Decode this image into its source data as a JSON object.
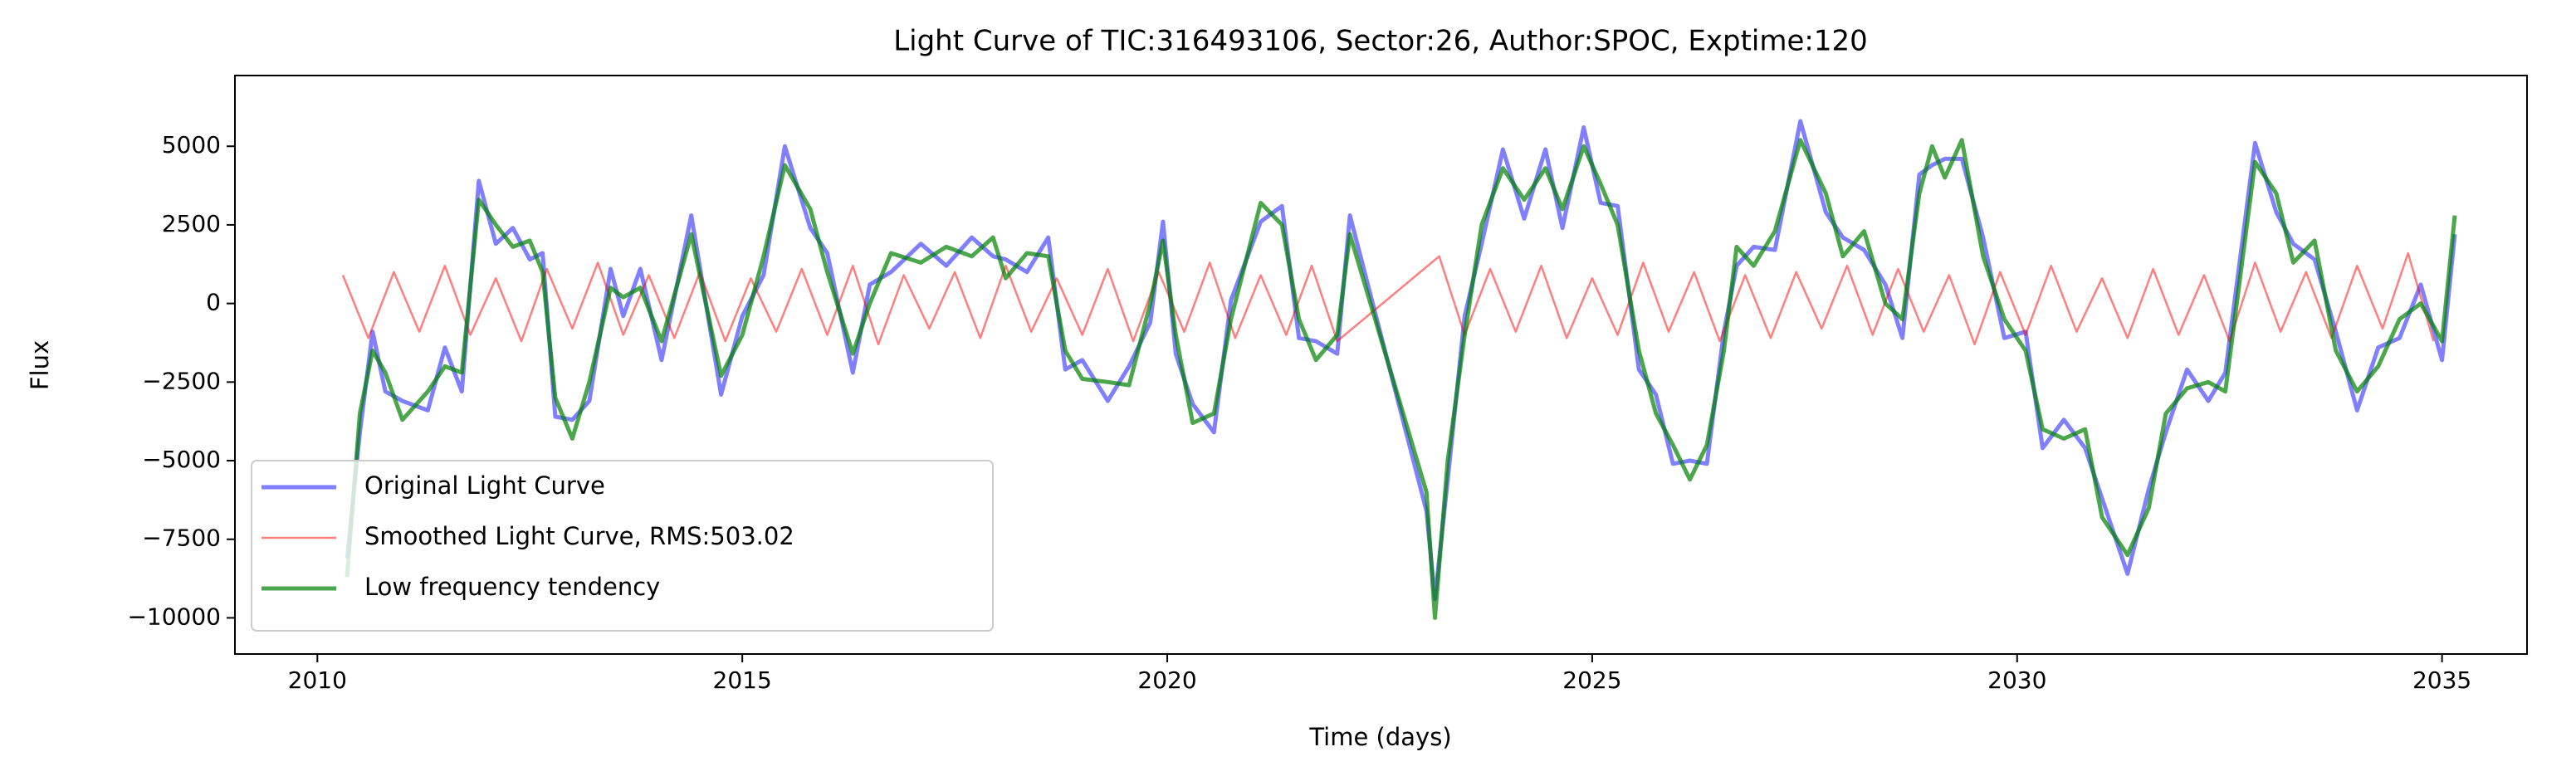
{
  "chart_data": {
    "type": "line",
    "title": "Light Curve of TIC:316493106, Sector:26, Author:SPOC, Exptime:120",
    "x_label": "Time (days)",
    "y_label": "Flux",
    "xlim": [
      2009.03,
      2036.0
    ],
    "ylim": [
      -11150,
      7250
    ],
    "xticks": [
      2010,
      2015,
      2020,
      2025,
      2030,
      2035
    ],
    "yticks": [
      {
        "value": -10000,
        "label": "−10000"
      },
      {
        "value": -7500,
        "label": "−7500"
      },
      {
        "value": -5000,
        "label": "−5000"
      },
      {
        "value": -2500,
        "label": "−2500"
      },
      0,
      2500,
      5000
    ],
    "legend": "lower left",
    "series": [
      {
        "name": "Original Light Curve",
        "color": "#0000ff",
        "alpha": 0.5,
        "x": [
          2010.35,
          2010.5,
          2010.65,
          2010.8,
          2011.0,
          2011.3,
          2011.5,
          2011.7,
          2011.9,
          2012.1,
          2012.3,
          2012.5,
          2012.65,
          2012.8,
          2013.0,
          2013.2,
          2013.45,
          2013.6,
          2013.8,
          2014.05,
          2014.4,
          2014.75,
          2015.0,
          2015.25,
          2015.5,
          2015.8,
          2016.0,
          2016.3,
          2016.5,
          2016.75,
          2017.1,
          2017.4,
          2017.7,
          2017.95,
          2018.1,
          2018.35,
          2018.6,
          2018.8,
          2019.0,
          2019.3,
          2019.55,
          2019.8,
          2019.95,
          2020.1,
          2020.3,
          2020.55,
          2020.75,
          2021.1,
          2021.35,
          2021.55,
          2021.75,
          2022.0,
          2022.15,
          2023.05,
          2023.15,
          2023.3,
          2023.5,
          2023.7,
          2023.95,
          2024.2,
          2024.45,
          2024.65,
          2024.9,
          2025.1,
          2025.3,
          2025.55,
          2025.75,
          2025.95,
          2026.15,
          2026.35,
          2026.55,
          2026.7,
          2026.9,
          2027.15,
          2027.45,
          2027.75,
          2027.95,
          2028.2,
          2028.45,
          2028.65,
          2028.85,
          2029.0,
          2029.15,
          2029.35,
          2029.6,
          2029.85,
          2030.1,
          2030.3,
          2030.55,
          2030.8,
          2031.0,
          2031.3,
          2031.55,
          2031.75,
          2032.0,
          2032.25,
          2032.45,
          2032.8,
          2033.05,
          2033.25,
          2033.5,
          2033.75,
          2034.0,
          2034.25,
          2034.5,
          2034.75,
          2035.0,
          2035.15
        ],
        "values": [
          -8100,
          -4100,
          -900,
          -2800,
          -3100,
          -3400,
          -1400,
          -2800,
          3900,
          1900,
          2400,
          1400,
          1600,
          -3600,
          -3700,
          -3100,
          1100,
          -400,
          1100,
          -1800,
          2800,
          -2900,
          -400,
          900,
          5000,
          2400,
          1600,
          -2200,
          600,
          1000,
          1900,
          1200,
          2100,
          1500,
          1400,
          1000,
          2100,
          -2100,
          -1800,
          -3100,
          -2000,
          -600,
          2600,
          -1600,
          -3200,
          -4100,
          100,
          2600,
          3100,
          -1100,
          -1200,
          -1600,
          2800,
          -6600,
          -9400,
          -5600,
          -400,
          1900,
          4900,
          2700,
          4900,
          2400,
          5600,
          3200,
          3100,
          -2100,
          -2900,
          -5100,
          -5000,
          -5100,
          -900,
          1200,
          1800,
          1700,
          5800,
          2900,
          2100,
          1700,
          600,
          -1100,
          4100,
          4400,
          4600,
          4600,
          2100,
          -1100,
          -900,
          -4600,
          -3700,
          -4600,
          -6200,
          -8600,
          -5900,
          -4100,
          -2100,
          -3100,
          -2200,
          5100,
          2900,
          1900,
          1400,
          -900,
          -3400,
          -1400,
          -1100,
          600,
          -1800,
          2200
        ]
      },
      {
        "name": "Smoothed Light Curve, RMS:503.02",
        "color": "#ff0000",
        "alpha": 0.5,
        "x": [
          2010.3,
          2010.6,
          2010.9,
          2011.2,
          2011.5,
          2011.8,
          2012.1,
          2012.4,
          2012.7,
          2013.0,
          2013.3,
          2013.6,
          2013.9,
          2014.2,
          2014.5,
          2014.8,
          2015.1,
          2015.4,
          2015.7,
          2016.0,
          2016.3,
          2016.6,
          2016.9,
          2017.2,
          2017.5,
          2017.8,
          2018.1,
          2018.4,
          2018.7,
          2019.0,
          2019.3,
          2019.6,
          2019.9,
          2020.2,
          2020.5,
          2020.8,
          2021.1,
          2021.4,
          2021.7,
          2022.0,
          2023.2,
          2023.5,
          2023.8,
          2024.1,
          2024.4,
          2024.7,
          2025.0,
          2025.3,
          2025.6,
          2025.9,
          2026.2,
          2026.5,
          2026.8,
          2027.1,
          2027.4,
          2027.7,
          2028.0,
          2028.3,
          2028.6,
          2028.9,
          2029.2,
          2029.5,
          2029.8,
          2030.1,
          2030.4,
          2030.7,
          2031.0,
          2031.3,
          2031.6,
          2031.9,
          2032.2,
          2032.5,
          2032.8,
          2033.1,
          2033.4,
          2033.7,
          2034.0,
          2034.3,
          2034.6,
          2034.9
        ],
        "values": [
          900,
          -1100,
          1000,
          -900,
          1200,
          -1000,
          800,
          -1200,
          1100,
          -800,
          1300,
          -1000,
          900,
          -1100,
          1000,
          -1200,
          800,
          -900,
          1100,
          -1000,
          1200,
          -1300,
          900,
          -800,
          1000,
          -1100,
          1200,
          -900,
          800,
          -1000,
          1100,
          -1200,
          1000,
          -900,
          1300,
          -1100,
          900,
          -1000,
          1200,
          -1200,
          1500,
          -1000,
          1100,
          -900,
          1200,
          -1100,
          800,
          -1000,
          1300,
          -900,
          1000,
          -1200,
          900,
          -1100,
          1000,
          -800,
          1200,
          -1000,
          1100,
          -900,
          900,
          -1300,
          1000,
          -1000,
          1200,
          -900,
          800,
          -1100,
          1100,
          -1000,
          900,
          -1200,
          1300,
          -900,
          1000,
          -1100,
          1200,
          -800,
          1600,
          -1200
        ]
      },
      {
        "name": "Low frequency tendency",
        "color": "#008000",
        "alpha": 0.7,
        "x": [
          2010.35,
          2010.5,
          2010.65,
          2010.8,
          2011.0,
          2011.3,
          2011.5,
          2011.7,
          2011.9,
          2012.1,
          2012.3,
          2012.5,
          2012.65,
          2012.8,
          2013.0,
          2013.2,
          2013.45,
          2013.6,
          2013.8,
          2014.05,
          2014.4,
          2014.75,
          2015.0,
          2015.25,
          2015.5,
          2015.8,
          2016.0,
          2016.3,
          2016.5,
          2016.75,
          2017.1,
          2017.4,
          2017.7,
          2017.95,
          2018.1,
          2018.35,
          2018.6,
          2018.8,
          2019.0,
          2019.3,
          2019.55,
          2019.8,
          2019.95,
          2020.1,
          2020.3,
          2020.55,
          2020.75,
          2021.1,
          2021.35,
          2021.55,
          2021.75,
          2022.0,
          2022.15,
          2023.05,
          2023.15,
          2023.3,
          2023.5,
          2023.7,
          2023.95,
          2024.2,
          2024.45,
          2024.65,
          2024.9,
          2025.1,
          2025.3,
          2025.55,
          2025.75,
          2025.95,
          2026.15,
          2026.35,
          2026.55,
          2026.7,
          2026.9,
          2027.15,
          2027.45,
          2027.75,
          2027.95,
          2028.2,
          2028.45,
          2028.65,
          2028.85,
          2029.0,
          2029.15,
          2029.35,
          2029.6,
          2029.85,
          2030.1,
          2030.3,
          2030.55,
          2030.8,
          2031.0,
          2031.3,
          2031.55,
          2031.75,
          2032.0,
          2032.25,
          2032.45,
          2032.8,
          2033.05,
          2033.25,
          2033.5,
          2033.75,
          2034.0,
          2034.25,
          2034.5,
          2034.75,
          2035.0,
          2035.15
        ],
        "values": [
          -8700,
          -3500,
          -1500,
          -2200,
          -3700,
          -2800,
          -2000,
          -2200,
          3300,
          2500,
          1800,
          2000,
          1000,
          -3000,
          -4300,
          -2500,
          500,
          200,
          500,
          -1200,
          2200,
          -2300,
          -1000,
          1500,
          4400,
          3000,
          1000,
          -1600,
          0,
          1600,
          1300,
          1800,
          1500,
          2100,
          800,
          1600,
          1500,
          -1500,
          -2400,
          -2500,
          -2600,
          0,
          2000,
          -1000,
          -3800,
          -3500,
          -500,
          3200,
          2500,
          -500,
          -1800,
          -1000,
          2200,
          -6000,
          -10000,
          -5000,
          -1000,
          2500,
          4300,
          3300,
          4300,
          3000,
          5000,
          3800,
          2500,
          -1500,
          -3500,
          -4500,
          -5600,
          -4500,
          -1500,
          1800,
          1200,
          2300,
          5200,
          3500,
          1500,
          2300,
          0,
          -500,
          3500,
          5000,
          4000,
          5200,
          1500,
          -500,
          -1500,
          -4000,
          -4300,
          -4000,
          -6800,
          -8000,
          -6500,
          -3500,
          -2700,
          -2500,
          -2800,
          4500,
          3500,
          1300,
          2000,
          -1500,
          -2800,
          -2000,
          -500,
          0,
          -1200,
          2800
        ]
      }
    ]
  }
}
